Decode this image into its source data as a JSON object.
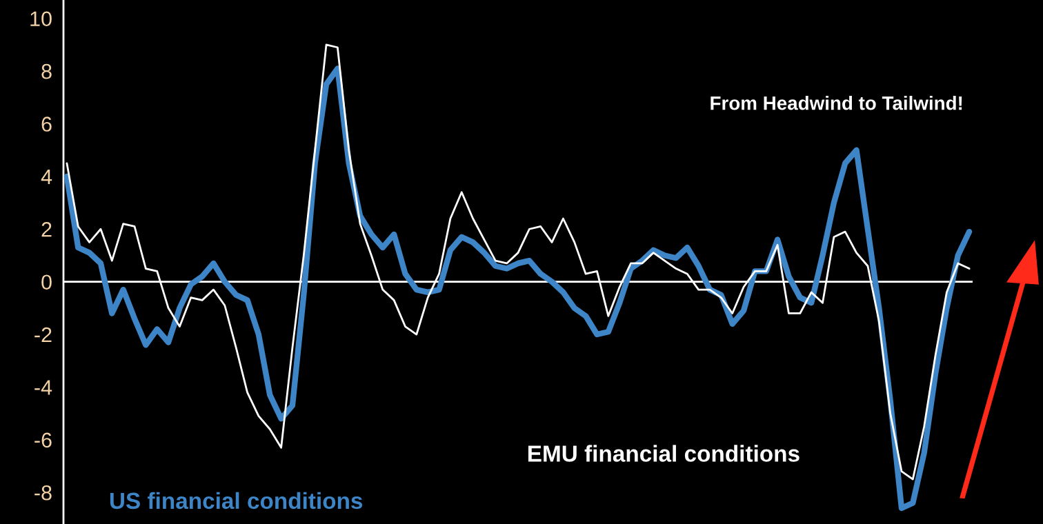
{
  "chart_data": {
    "type": "line",
    "categories": [
      null,
      null,
      null,
      null,
      null,
      null,
      null,
      null,
      null,
      null,
      null,
      null,
      null,
      null,
      null,
      null,
      null,
      null,
      null,
      null,
      null,
      null,
      null,
      null,
      null,
      null,
      null,
      null,
      null,
      null,
      null,
      null,
      null,
      null,
      null,
      null,
      null,
      null,
      null,
      null,
      null,
      null,
      null,
      null,
      null,
      null,
      null,
      null,
      null,
      null,
      null,
      null,
      null,
      null,
      null,
      null,
      null,
      null,
      null,
      null,
      null,
      null,
      null,
      null,
      null,
      null,
      null,
      null,
      null,
      null,
      null,
      null,
      null,
      null,
      null,
      null,
      null,
      null,
      null,
      null,
      null
    ],
    "series": [
      {
        "name": "US financial conditions",
        "color": "#3d85c6",
        "values": [
          4.0,
          1.3,
          1.1,
          0.7,
          -1.2,
          -0.3,
          -1.4,
          -2.4,
          -1.8,
          -2.3,
          -1.0,
          -0.1,
          0.2,
          0.7,
          0.0,
          -0.5,
          -0.7,
          -2.0,
          -4.3,
          -5.2,
          -4.7,
          -0.5,
          4.5,
          7.5,
          8.1,
          4.5,
          2.5,
          1.8,
          1.3,
          1.8,
          0.3,
          -0.3,
          -0.4,
          -0.3,
          1.2,
          1.7,
          1.5,
          1.1,
          0.6,
          0.5,
          0.7,
          0.8,
          0.3,
          0.0,
          -0.4,
          -1.0,
          -1.3,
          -2.0,
          -1.9,
          -0.8,
          0.5,
          0.8,
          1.2,
          1.0,
          0.9,
          1.3,
          0.6,
          -0.3,
          -0.5,
          -1.6,
          -1.1,
          0.4,
          0.4,
          1.6,
          0.2,
          -0.6,
          -0.8,
          1.0,
          3.0,
          4.5,
          5.0,
          2.0,
          -1.0,
          -4.5,
          -8.6,
          -8.4,
          -6.5,
          -3.5,
          -1.0,
          1.0,
          1.9
        ]
      },
      {
        "name": "EMU financial conditions",
        "color": "#ffffff",
        "values": [
          4.5,
          2.1,
          1.5,
          2.0,
          0.8,
          2.2,
          2.1,
          0.5,
          0.4,
          -1.0,
          -1.7,
          -0.6,
          -0.7,
          -0.3,
          -0.9,
          -2.5,
          -4.2,
          -5.1,
          -5.6,
          -6.3,
          -2.5,
          1.0,
          5.0,
          9.0,
          8.9,
          5.0,
          2.2,
          1.0,
          -0.3,
          -0.7,
          -1.7,
          -2.0,
          -0.6,
          0.3,
          2.4,
          3.4,
          2.4,
          1.6,
          0.8,
          0.7,
          1.1,
          2.0,
          2.1,
          1.5,
          2.4,
          1.5,
          0.3,
          0.4,
          -1.3,
          -0.2,
          0.7,
          0.7,
          1.1,
          0.8,
          0.5,
          0.3,
          -0.3,
          -0.3,
          -0.6,
          -1.2,
          -0.2,
          0.4,
          0.4,
          1.4,
          -1.2,
          -1.2,
          -0.4,
          -0.8,
          1.7,
          1.9,
          1.1,
          0.6,
          -1.5,
          -5.0,
          -7.2,
          -7.5,
          -5.5,
          -2.8,
          -0.4,
          0.7,
          0.5
        ]
      }
    ],
    "ylim": [
      -9.2,
      10.7
    ],
    "yticks": [
      -8,
      -6,
      -4,
      -2,
      0,
      2,
      4,
      6,
      8,
      10
    ],
    "tick_labels": "y",
    "legend": false,
    "grid": false,
    "ref_lines": [
      {
        "axis": "y",
        "value": 0,
        "color": "#ffffff"
      }
    ],
    "annotations": [
      "From Headwind to Tailwind!"
    ]
  }
}
